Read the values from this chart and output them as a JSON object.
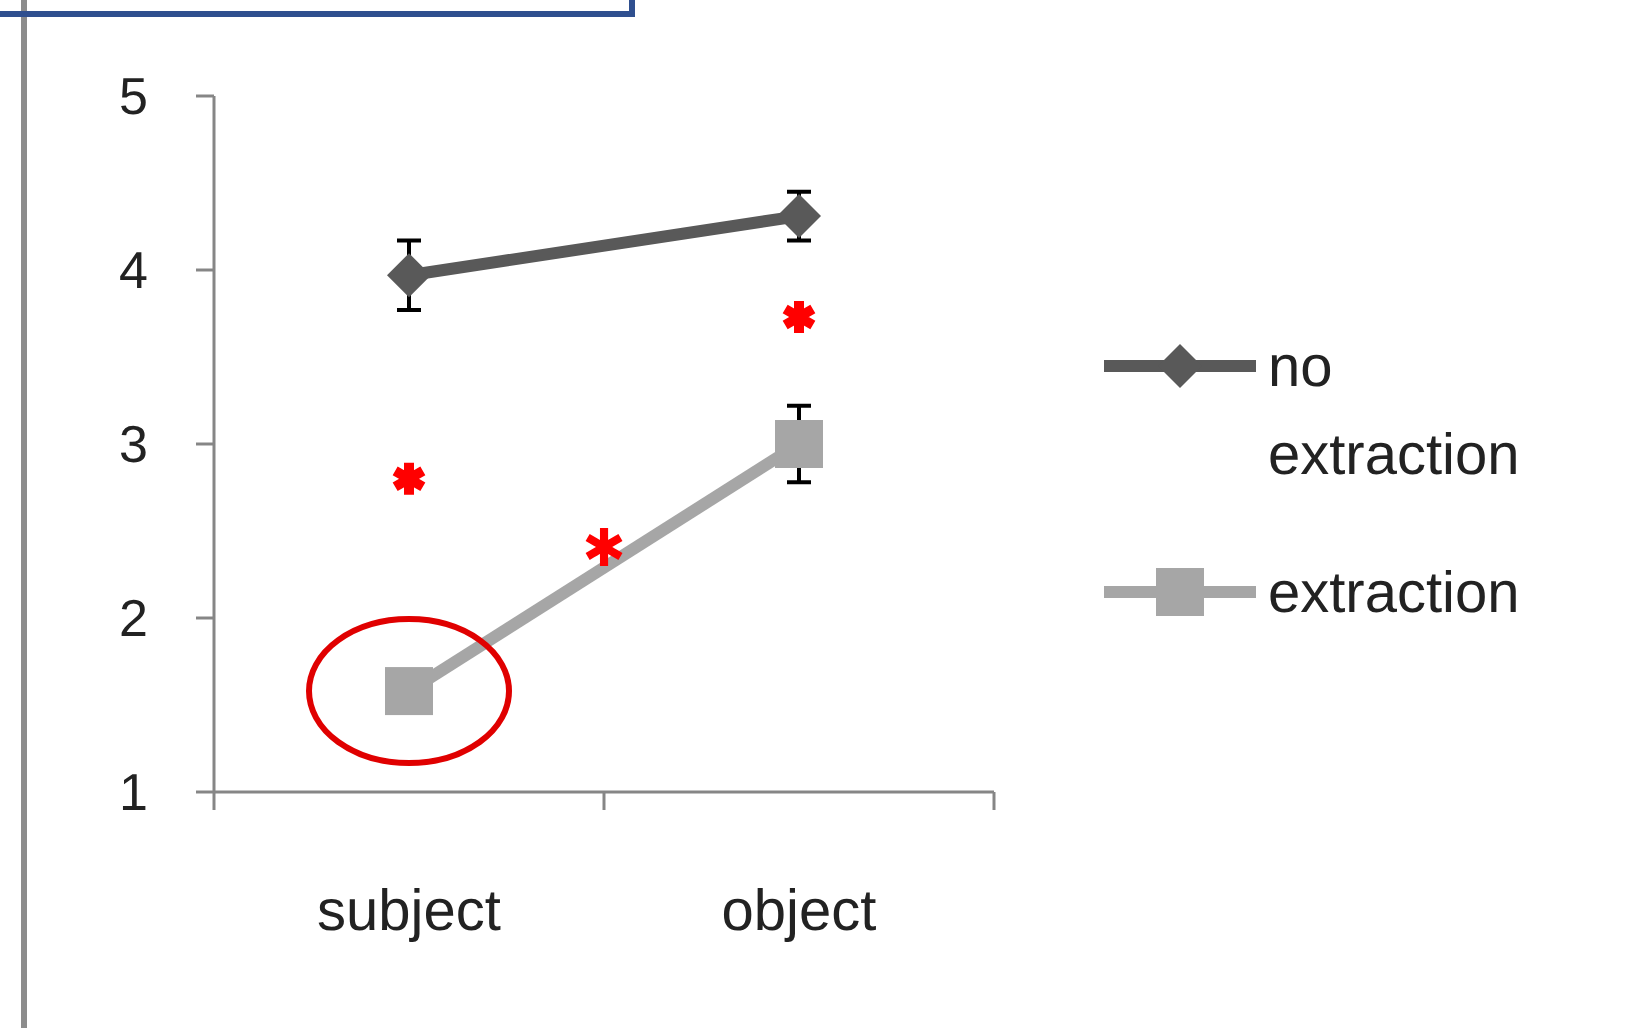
{
  "chart_data": {
    "type": "line",
    "categories": [
      "subject",
      "object"
    ],
    "series": [
      {
        "name": "no extraction",
        "color": "#595959",
        "values": [
          3.97,
          4.31
        ],
        "marker": "diamond",
        "errors": [
          0.2,
          0.14
        ]
      },
      {
        "name": "extraction",
        "color": "#a6a6a6",
        "values": [
          1.58,
          3.0
        ],
        "marker": "square",
        "errors": [
          null,
          0.22
        ]
      },
      {
        "type": "scatter",
        "color": "#ff0000",
        "x": [
          "subject",
          "object"
        ],
        "values": [
          2.8,
          3.73
        ],
        "marker": "cross"
      }
    ],
    "annotations": [
      "✱"
    ],
    "ylim": [
      1,
      5
    ],
    "yticks": [
      1,
      2,
      3,
      4,
      5
    ],
    "grid": false,
    "legend": "right"
  }
}
